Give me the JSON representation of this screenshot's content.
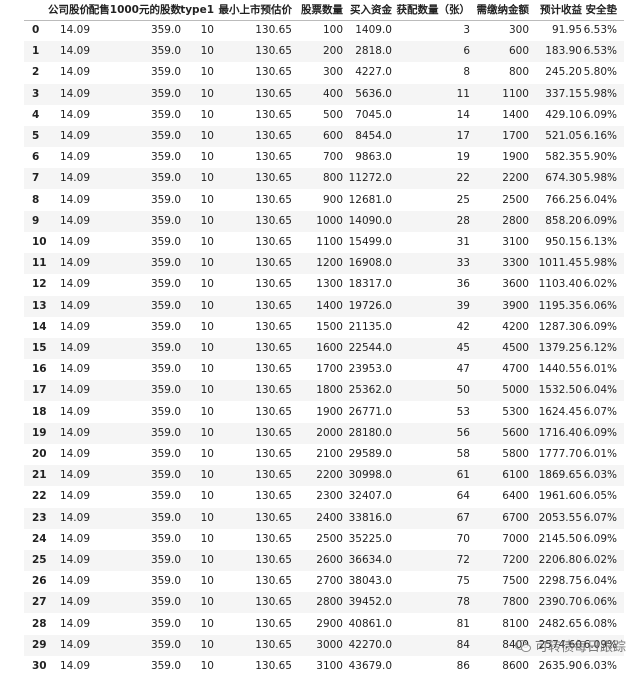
{
  "table": {
    "columns": [
      "公司股价",
      "配售1000元的股数",
      "type1",
      "最小上市预估价",
      "股票数量",
      "买入资金",
      "获配数量（张）",
      "需缴纳金额",
      "预计收益",
      "安全垫"
    ],
    "rows": [
      [
        "0",
        "14.09",
        "359.0",
        "10",
        "130.65",
        "100",
        "1409.0",
        "3",
        "300",
        "91.95",
        "6.53%"
      ],
      [
        "1",
        "14.09",
        "359.0",
        "10",
        "130.65",
        "200",
        "2818.0",
        "6",
        "600",
        "183.90",
        "6.53%"
      ],
      [
        "2",
        "14.09",
        "359.0",
        "10",
        "130.65",
        "300",
        "4227.0",
        "8",
        "800",
        "245.20",
        "5.80%"
      ],
      [
        "3",
        "14.09",
        "359.0",
        "10",
        "130.65",
        "400",
        "5636.0",
        "11",
        "1100",
        "337.15",
        "5.98%"
      ],
      [
        "4",
        "14.09",
        "359.0",
        "10",
        "130.65",
        "500",
        "7045.0",
        "14",
        "1400",
        "429.10",
        "6.09%"
      ],
      [
        "5",
        "14.09",
        "359.0",
        "10",
        "130.65",
        "600",
        "8454.0",
        "17",
        "1700",
        "521.05",
        "6.16%"
      ],
      [
        "6",
        "14.09",
        "359.0",
        "10",
        "130.65",
        "700",
        "9863.0",
        "19",
        "1900",
        "582.35",
        "5.90%"
      ],
      [
        "7",
        "14.09",
        "359.0",
        "10",
        "130.65",
        "800",
        "11272.0",
        "22",
        "2200",
        "674.30",
        "5.98%"
      ],
      [
        "8",
        "14.09",
        "359.0",
        "10",
        "130.65",
        "900",
        "12681.0",
        "25",
        "2500",
        "766.25",
        "6.04%"
      ],
      [
        "9",
        "14.09",
        "359.0",
        "10",
        "130.65",
        "1000",
        "14090.0",
        "28",
        "2800",
        "858.20",
        "6.09%"
      ],
      [
        "10",
        "14.09",
        "359.0",
        "10",
        "130.65",
        "1100",
        "15499.0",
        "31",
        "3100",
        "950.15",
        "6.13%"
      ],
      [
        "11",
        "14.09",
        "359.0",
        "10",
        "130.65",
        "1200",
        "16908.0",
        "33",
        "3300",
        "1011.45",
        "5.98%"
      ],
      [
        "12",
        "14.09",
        "359.0",
        "10",
        "130.65",
        "1300",
        "18317.0",
        "36",
        "3600",
        "1103.40",
        "6.02%"
      ],
      [
        "13",
        "14.09",
        "359.0",
        "10",
        "130.65",
        "1400",
        "19726.0",
        "39",
        "3900",
        "1195.35",
        "6.06%"
      ],
      [
        "14",
        "14.09",
        "359.0",
        "10",
        "130.65",
        "1500",
        "21135.0",
        "42",
        "4200",
        "1287.30",
        "6.09%"
      ],
      [
        "15",
        "14.09",
        "359.0",
        "10",
        "130.65",
        "1600",
        "22544.0",
        "45",
        "4500",
        "1379.25",
        "6.12%"
      ],
      [
        "16",
        "14.09",
        "359.0",
        "10",
        "130.65",
        "1700",
        "23953.0",
        "47",
        "4700",
        "1440.55",
        "6.01%"
      ],
      [
        "17",
        "14.09",
        "359.0",
        "10",
        "130.65",
        "1800",
        "25362.0",
        "50",
        "5000",
        "1532.50",
        "6.04%"
      ],
      [
        "18",
        "14.09",
        "359.0",
        "10",
        "130.65",
        "1900",
        "26771.0",
        "53",
        "5300",
        "1624.45",
        "6.07%"
      ],
      [
        "19",
        "14.09",
        "359.0",
        "10",
        "130.65",
        "2000",
        "28180.0",
        "56",
        "5600",
        "1716.40",
        "6.09%"
      ],
      [
        "20",
        "14.09",
        "359.0",
        "10",
        "130.65",
        "2100",
        "29589.0",
        "58",
        "5800",
        "1777.70",
        "6.01%"
      ],
      [
        "21",
        "14.09",
        "359.0",
        "10",
        "130.65",
        "2200",
        "30998.0",
        "61",
        "6100",
        "1869.65",
        "6.03%"
      ],
      [
        "22",
        "14.09",
        "359.0",
        "10",
        "130.65",
        "2300",
        "32407.0",
        "64",
        "6400",
        "1961.60",
        "6.05%"
      ],
      [
        "23",
        "14.09",
        "359.0",
        "10",
        "130.65",
        "2400",
        "33816.0",
        "67",
        "6700",
        "2053.55",
        "6.07%"
      ],
      [
        "24",
        "14.09",
        "359.0",
        "10",
        "130.65",
        "2500",
        "35225.0",
        "70",
        "7000",
        "2145.50",
        "6.09%"
      ],
      [
        "25",
        "14.09",
        "359.0",
        "10",
        "130.65",
        "2600",
        "36634.0",
        "72",
        "7200",
        "2206.80",
        "6.02%"
      ],
      [
        "26",
        "14.09",
        "359.0",
        "10",
        "130.65",
        "2700",
        "38043.0",
        "75",
        "7500",
        "2298.75",
        "6.04%"
      ],
      [
        "27",
        "14.09",
        "359.0",
        "10",
        "130.65",
        "2800",
        "39452.0",
        "78",
        "7800",
        "2390.70",
        "6.06%"
      ],
      [
        "28",
        "14.09",
        "359.0",
        "10",
        "130.65",
        "2900",
        "40861.0",
        "81",
        "8100",
        "2482.65",
        "6.08%"
      ],
      [
        "29",
        "14.09",
        "359.0",
        "10",
        "130.65",
        "3000",
        "42270.0",
        "84",
        "8400",
        "2574.60",
        "6.09%"
      ],
      [
        "30",
        "14.09",
        "359.0",
        "10",
        "130.65",
        "3100",
        "43679.0",
        "86",
        "8600",
        "2635.90",
        "6.03%"
      ]
    ]
  },
  "watermark": {
    "text": "可转债每日跟踪"
  }
}
